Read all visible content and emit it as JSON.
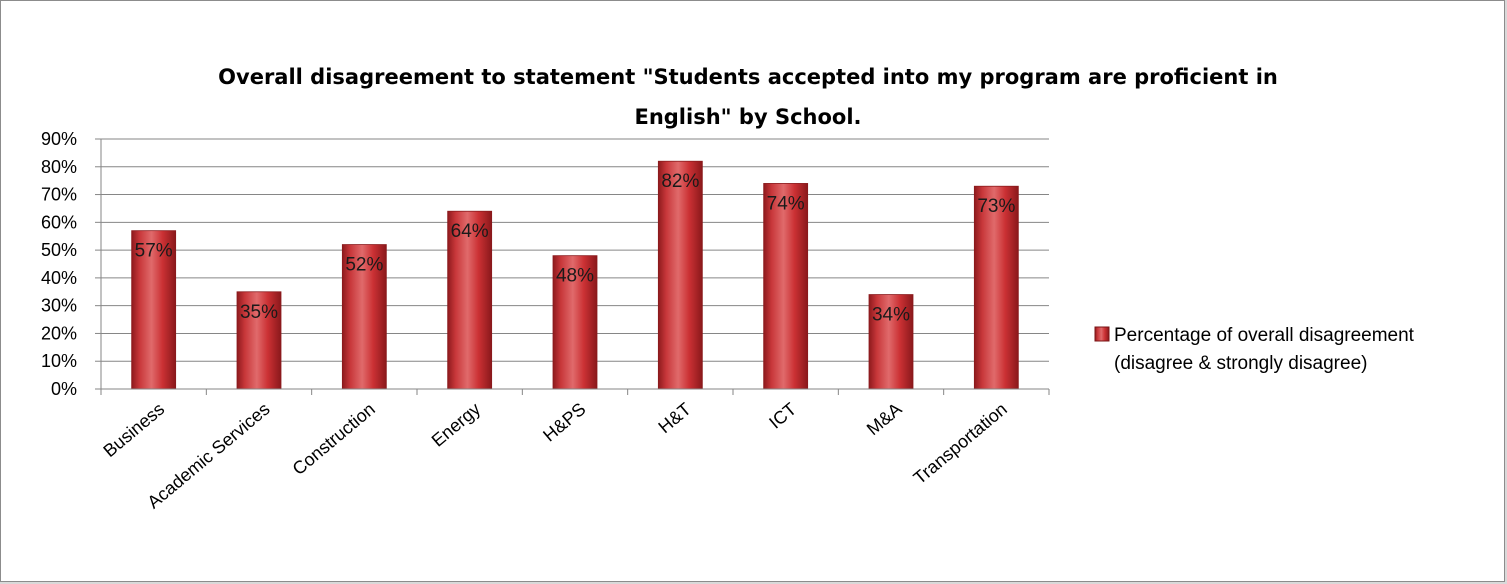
{
  "chart_data": {
    "type": "bar",
    "title_lines": [
      "Overall disagreement to statement \"Students accepted into my program are proficient in",
      "English\" by School."
    ],
    "categories": [
      "Business",
      "Academic Services",
      "Construction",
      "Energy",
      "H&PS",
      "H&T",
      "ICT",
      "M&A",
      "Transportation"
    ],
    "series": [
      {
        "name": "Percentage of overall disagreement (disagree & strongly disagree)",
        "legend_lines": [
          "Percentage of overall disagreement",
          "(disagree & strongly disagree)"
        ],
        "values": [
          57,
          35,
          52,
          64,
          48,
          82,
          74,
          34,
          73
        ],
        "data_labels": [
          "57%",
          "35%",
          "52%",
          "64%",
          "48%",
          "82%",
          "74%",
          "34%",
          "73%"
        ],
        "color": "#c0282d"
      }
    ],
    "ylim": [
      0,
      90
    ],
    "yticks": [
      0,
      10,
      20,
      30,
      40,
      50,
      60,
      70,
      80,
      90
    ],
    "ytick_labels": [
      "0%",
      "10%",
      "20%",
      "30%",
      "40%",
      "50%",
      "60%",
      "70%",
      "80%",
      "90%"
    ],
    "xlabel": "",
    "ylabel": "",
    "grid": true,
    "legend_position": "right"
  }
}
